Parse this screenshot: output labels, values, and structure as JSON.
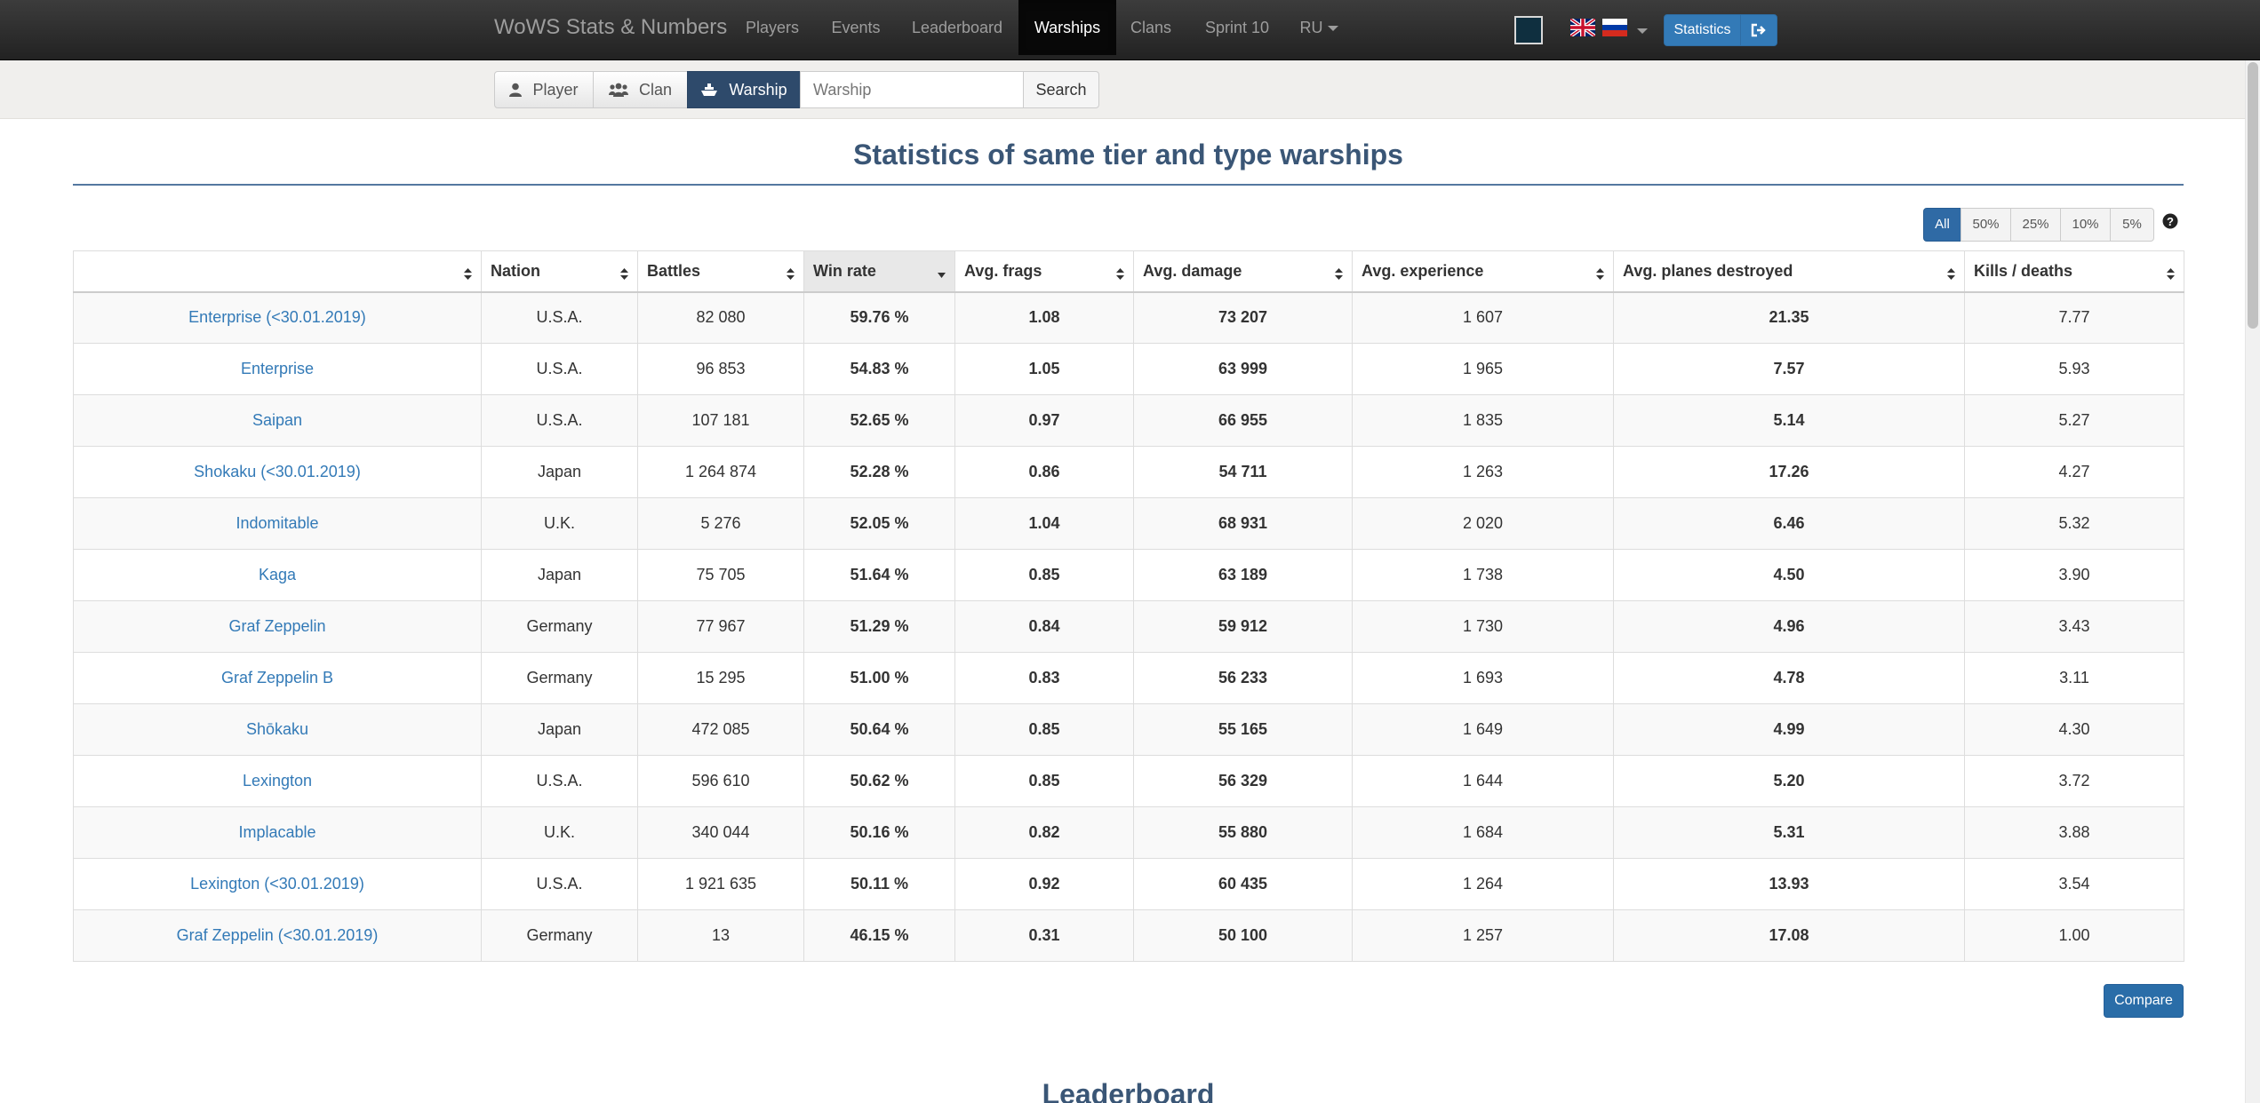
{
  "navbar": {
    "brand": "WoWS Stats & Numbers",
    "items": [
      "Players",
      "Events",
      "Leaderboard",
      "Warships",
      "Clans",
      "Sprint 10",
      "RU"
    ],
    "active_item": "Warships",
    "statistics_button": "Statistics",
    "colors": {
      "background": "#222222",
      "active": "#080808",
      "button": "#337ab7"
    }
  },
  "search": {
    "segments": [
      "Player",
      "Clan",
      "Warship"
    ],
    "active_segment": "Warship",
    "input_placeholder": "Warship",
    "search_button": "Search"
  },
  "page": {
    "title": "Statistics of same tier and type warships",
    "percentile_filters": [
      "All",
      "50%",
      "25%",
      "10%",
      "5%"
    ],
    "active_filter": "All",
    "compare_button": "Compare",
    "next_section_title": "Leaderboard"
  },
  "table": {
    "columns": [
      "",
      "Nation",
      "Battles",
      "Win rate",
      "Avg. frags",
      "Avg. damage",
      "Avg. experience",
      "Avg. planes destroyed",
      "Kills / deaths"
    ],
    "sorted_column": "Win rate",
    "rows": [
      {
        "name": "Enterprise (<30.01.2019)",
        "nation": "U.S.A.",
        "battles": "82 080",
        "winrate": "59.76 %",
        "frags": "1.08",
        "damage": "73 207",
        "xp": "1 607",
        "planes": "21.35",
        "kd": "7.77",
        "wr_class": "g1",
        "fr_class": "g3",
        "pl_class": "uni"
      },
      {
        "name": "Enterprise",
        "nation": "U.S.A.",
        "battles": "96 853",
        "winrate": "54.83 %",
        "frags": "1.05",
        "damage": "63 999",
        "xp": "1 965",
        "planes": "7.57",
        "kd": "5.93",
        "wr_class": "g2",
        "fr_class": "g3",
        "pl_class": "uni"
      },
      {
        "name": "Saipan",
        "nation": "U.S.A.",
        "battles": "107 181",
        "winrate": "52.65 %",
        "frags": "0.97",
        "damage": "66 955",
        "xp": "1 835",
        "planes": "5.14",
        "kd": "5.27",
        "wr_class": "g3",
        "fr_class": "g3",
        "pl_class": "teal"
      },
      {
        "name": "Shokaku (<30.01.2019)",
        "nation": "Japan",
        "battles": "1 264 874",
        "winrate": "52.28 %",
        "frags": "0.86",
        "damage": "54 711",
        "xp": "1 263",
        "planes": "17.26",
        "kd": "4.27",
        "wr_class": "g3",
        "fr_class": "avg",
        "pl_class": "uni"
      },
      {
        "name": "Indomitable",
        "nation": "U.K.",
        "battles": "5 276",
        "winrate": "52.05 %",
        "frags": "1.04",
        "damage": "68 931",
        "xp": "2 020",
        "planes": "6.46",
        "kd": "5.32",
        "wr_class": "g3",
        "fr_class": "g3",
        "pl_class": "uni"
      },
      {
        "name": "Kaga",
        "nation": "Japan",
        "battles": "75 705",
        "winrate": "51.64 %",
        "frags": "0.85",
        "damage": "63 189",
        "xp": "1 738",
        "planes": "4.50",
        "kd": "3.90",
        "wr_class": "avg",
        "fr_class": "avg",
        "pl_class": "teal"
      },
      {
        "name": "Graf Zeppelin",
        "nation": "Germany",
        "battles": "77 967",
        "winrate": "51.29 %",
        "frags": "0.84",
        "damage": "59 912",
        "xp": "1 730",
        "planes": "4.96",
        "kd": "3.43",
        "wr_class": "avg",
        "fr_class": "avg",
        "pl_class": "teal"
      },
      {
        "name": "Graf Zeppelin B",
        "nation": "Germany",
        "battles": "15 295",
        "winrate": "51.00 %",
        "frags": "0.83",
        "damage": "56 233",
        "xp": "1 693",
        "planes": "4.78",
        "kd": "3.11",
        "wr_class": "avg",
        "fr_class": "avg",
        "pl_class": "teal"
      },
      {
        "name": "Shōkaku",
        "nation": "Japan",
        "battles": "472 085",
        "winrate": "50.64 %",
        "frags": "0.85",
        "damage": "55 165",
        "xp": "1 649",
        "planes": "4.99",
        "kd": "4.30",
        "wr_class": "avg",
        "fr_class": "avg",
        "pl_class": "teal"
      },
      {
        "name": "Lexington",
        "nation": "U.S.A.",
        "battles": "596 610",
        "winrate": "50.62 %",
        "frags": "0.85",
        "damage": "56 329",
        "xp": "1 644",
        "planes": "5.20",
        "kd": "3.72",
        "wr_class": "avg",
        "fr_class": "avg",
        "pl_class": "teal"
      },
      {
        "name": "Implacable",
        "nation": "U.K.",
        "battles": "340 044",
        "winrate": "50.16 %",
        "frags": "0.82",
        "damage": "55 880",
        "xp": "1 684",
        "planes": "5.31",
        "kd": "3.88",
        "wr_class": "avg",
        "fr_class": "avg",
        "pl_class": "teal"
      },
      {
        "name": "Lexington (<30.01.2019)",
        "nation": "U.S.A.",
        "battles": "1 921 635",
        "winrate": "50.11 %",
        "frags": "0.92",
        "damage": "60 435",
        "xp": "1 264",
        "planes": "13.93",
        "kd": "3.54",
        "wr_class": "avg",
        "fr_class": "g3",
        "pl_class": "uni"
      },
      {
        "name": "Graf Zeppelin (<30.01.2019)",
        "nation": "Germany",
        "battles": "13",
        "winrate": "46.15 %",
        "frags": "0.31",
        "damage": "50 100",
        "xp": "1 257",
        "planes": "17.08",
        "kd": "1.00",
        "wr_class": "bad",
        "fr_class": "bad",
        "pl_class": "uni"
      }
    ]
  }
}
